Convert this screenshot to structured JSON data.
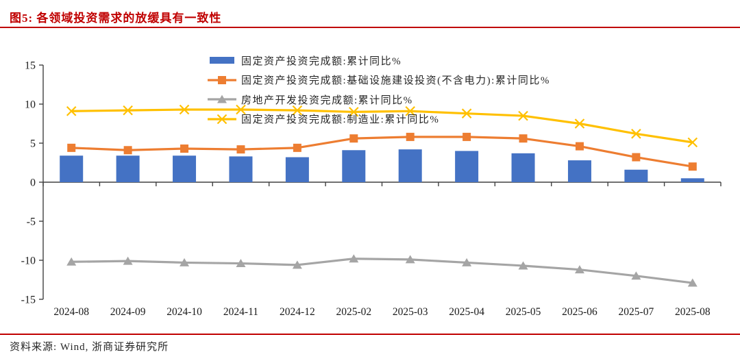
{
  "header": {
    "title": "图5:  各领域投资需求的放缓具有一致性"
  },
  "footer": {
    "source": "资料来源: Wind, 浙商证券研究所"
  },
  "colors": {
    "accent_red": "#C00000",
    "bar_blue": "#4472C4",
    "line_orange": "#ED7D31",
    "line_gray": "#A5A5A5",
    "line_yellow": "#FFC000",
    "axis": "#404040",
    "text": "#262626"
  },
  "chart_data": {
    "type": "combo",
    "title": "各领域投资需求的放缓具有一致性",
    "xlabel": "",
    "ylabel": "",
    "ylim": [
      -15,
      15
    ],
    "yticks": [
      15,
      10,
      5,
      0,
      -5,
      -10,
      -15
    ],
    "grid": false,
    "legend_position": "top",
    "categories": [
      "2024-08",
      "2024-09",
      "2024-10",
      "2024-11",
      "2024-12",
      "2025-02",
      "2025-03",
      "2025-04",
      "2025-05",
      "2025-06",
      "2025-07",
      "2025-08"
    ],
    "series": [
      {
        "name": "固定资产投资完成额:累计同比%",
        "type": "bar",
        "marker": "none",
        "color": "#4472C4",
        "values": [
          3.4,
          3.4,
          3.4,
          3.3,
          3.2,
          4.1,
          4.2,
          4.0,
          3.7,
          2.8,
          1.6,
          0.5
        ]
      },
      {
        "name": "固定资产投资完成额:基础设施建设投资(不含电力):累计同比%",
        "type": "line",
        "marker": "square",
        "color": "#ED7D31",
        "values": [
          4.4,
          4.1,
          4.3,
          4.2,
          4.4,
          5.6,
          5.8,
          5.8,
          5.6,
          4.6,
          3.2,
          2.0
        ]
      },
      {
        "name": "房地产开发投资完成额:累计同比%",
        "type": "line",
        "marker": "triangle",
        "color": "#A5A5A5",
        "values": [
          -10.2,
          -10.1,
          -10.3,
          -10.4,
          -10.6,
          -9.8,
          -9.9,
          -10.3,
          -10.7,
          -11.2,
          -12.0,
          -12.9
        ]
      },
      {
        "name": "固定资产投资完成额:制造业:累计同比%",
        "type": "line",
        "marker": "x",
        "color": "#FFC000",
        "values": [
          9.1,
          9.2,
          9.3,
          9.3,
          9.2,
          9.0,
          9.1,
          8.8,
          8.5,
          7.5,
          6.2,
          5.1
        ]
      }
    ]
  }
}
